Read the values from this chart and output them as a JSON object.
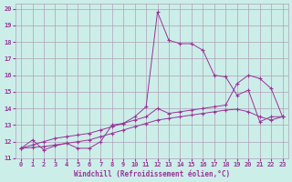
{
  "title": "",
  "xlabel": "Windchill (Refroidissement éolien,°C)",
  "ylabel": "",
  "bg_color": "#cceee8",
  "grid_color": "#b0a0b8",
  "line_color": "#993399",
  "xlim": [
    -0.5,
    23.5
  ],
  "ylim": [
    11,
    20.3
  ],
  "xticks": [
    0,
    1,
    2,
    3,
    4,
    5,
    6,
    7,
    8,
    9,
    10,
    11,
    12,
    13,
    14,
    15,
    16,
    17,
    18,
    19,
    20,
    21,
    22,
    23
  ],
  "yticks": [
    11,
    12,
    13,
    14,
    15,
    16,
    17,
    18,
    19,
    20
  ],
  "series1_x": [
    0,
    1,
    2,
    3,
    4,
    5,
    6,
    7,
    8,
    9,
    10,
    11,
    12,
    13,
    14,
    15,
    16,
    17,
    18,
    19,
    20,
    21,
    22,
    23
  ],
  "series1_y": [
    11.6,
    12.1,
    11.5,
    11.75,
    11.9,
    11.6,
    11.6,
    12.0,
    13.0,
    13.1,
    13.5,
    14.1,
    19.8,
    18.1,
    17.9,
    17.9,
    17.5,
    16.0,
    15.9,
    14.8,
    15.1,
    13.2,
    13.5,
    13.5
  ],
  "series2_x": [
    0,
    1,
    2,
    3,
    4,
    5,
    6,
    7,
    8,
    9,
    10,
    11,
    12,
    13,
    14,
    15,
    16,
    17,
    18,
    19,
    20,
    21,
    22,
    23
  ],
  "series2_y": [
    11.6,
    11.65,
    11.7,
    11.8,
    11.9,
    12.0,
    12.1,
    12.3,
    12.5,
    12.7,
    12.9,
    13.1,
    13.3,
    13.4,
    13.5,
    13.6,
    13.7,
    13.8,
    13.9,
    13.95,
    13.8,
    13.5,
    13.3,
    13.5
  ],
  "series3_x": [
    0,
    1,
    2,
    3,
    4,
    5,
    6,
    7,
    8,
    9,
    10,
    11,
    12,
    13,
    14,
    15,
    16,
    17,
    18,
    19,
    20,
    21,
    22,
    23
  ],
  "series3_y": [
    11.6,
    11.8,
    12.0,
    12.2,
    12.3,
    12.4,
    12.5,
    12.7,
    12.9,
    13.1,
    13.3,
    13.5,
    14.0,
    13.7,
    13.8,
    13.9,
    14.0,
    14.1,
    14.2,
    15.5,
    16.0,
    15.8,
    15.2,
    13.5
  ]
}
